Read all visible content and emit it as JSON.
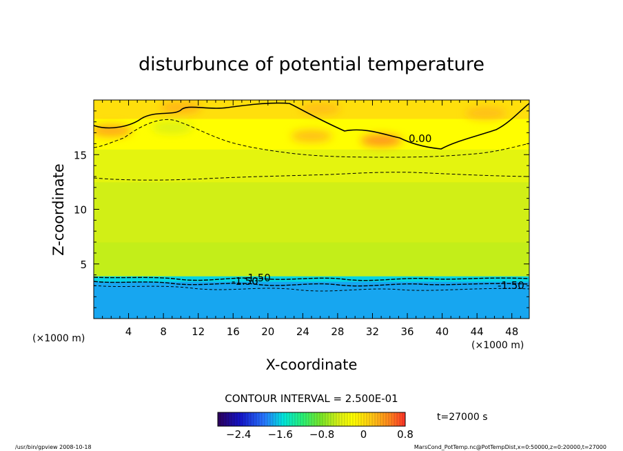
{
  "chart_data": {
    "type": "heatmap",
    "title": "disturbunce of potential temperature",
    "xlabel": "X-coordinate",
    "ylabel": "Z-coordinate",
    "x_unit": "(×1000 m)",
    "y_unit": "(×1000 m)",
    "xlim": [
      0,
      50
    ],
    "ylim": [
      0,
      20
    ],
    "x_ticks": [
      4,
      8,
      12,
      16,
      20,
      24,
      28,
      32,
      36,
      40,
      44,
      48
    ],
    "y_ticks": [
      5,
      10,
      15
    ],
    "contour_interval_text": "CONTOUR INTERVAL = 2.500E-01",
    "time_text": "t=27000 s",
    "contour_labels": [
      "0.00",
      "-1.50",
      "-1.50",
      "-1.50"
    ],
    "colorbar": {
      "min": -2.8,
      "max": 0.8,
      "ticks": [
        -2.4,
        -1.6,
        -0.8,
        0,
        0.8
      ],
      "tick_labels": [
        "−2.4",
        "−1.6",
        "−0.8",
        "0",
        "0.8"
      ]
    },
    "field_levels": [
      {
        "z_range": [
          0,
          3.4
        ],
        "value": -1.75
      },
      {
        "z_range": [
          3.4,
          3.9
        ],
        "value": -1.6
      },
      {
        "z_range": [
          3.9,
          7
        ],
        "value": -0.55
      },
      {
        "z_range": [
          7,
          12.5
        ],
        "value": -0.5
      },
      {
        "z_range": [
          12.5,
          15.5
        ],
        "value": -0.4
      },
      {
        "z_range": [
          15.5,
          18.3
        ],
        "value": -0.2
      },
      {
        "z_range": [
          18.3,
          20
        ],
        "value": 0.0
      }
    ],
    "hot_spots": [
      {
        "x": 33,
        "z": 16.3,
        "value": 0.4
      },
      {
        "x": 25,
        "z": 16.7,
        "value": 0.2
      },
      {
        "x": 10,
        "z": 19.3,
        "value": 0.25
      },
      {
        "x": 2,
        "z": 17.2,
        "value": 0.3
      },
      {
        "x": 26,
        "z": 19.2,
        "value": 0.2
      },
      {
        "x": 45,
        "z": 18.8,
        "value": 0.2
      }
    ],
    "cool_spots": [
      {
        "x": 9,
        "z": 17.5,
        "value": -0.45
      }
    ]
  },
  "footer": {
    "left": "/usr/bin/gpview   2008-10-18",
    "right": "MarsCond_PotTemp.nc@PotTempDist,x=0:50000,z=0:20000,t=27000"
  }
}
